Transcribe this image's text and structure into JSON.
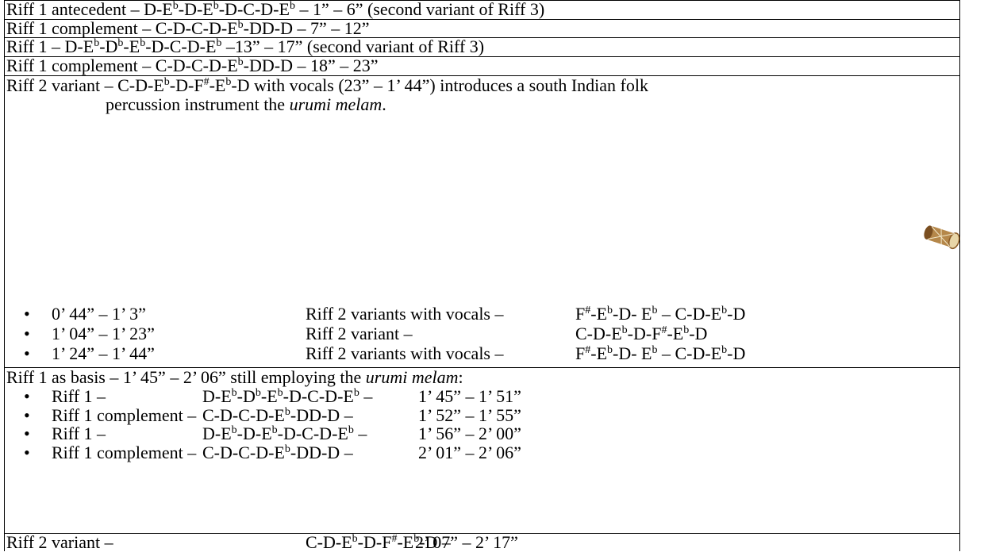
{
  "rows": [
    {
      "runs": [
        {
          "t": "Riff 1 antecedent – D-E"
        },
        {
          "sup": "b"
        },
        {
          "t": "-D-E"
        },
        {
          "sup": "b"
        },
        {
          "t": "-D-C-D-E"
        },
        {
          "sup": "b"
        },
        {
          "t": " – 1” – 6” (second variant of Riff 3)"
        }
      ]
    },
    {
      "runs": [
        {
          "t": "Riff 1 complement – C-D-C-D-E"
        },
        {
          "sup": "b"
        },
        {
          "t": "-DD-D – 7” – 12”"
        }
      ]
    },
    {
      "runs": [
        {
          "t": "Riff 1 – D-E"
        },
        {
          "sup": "b"
        },
        {
          "t": "-D"
        },
        {
          "sup": "b"
        },
        {
          "t": "-E"
        },
        {
          "sup": "b"
        },
        {
          "t": "-D-C-D-E"
        },
        {
          "sup": "b"
        },
        {
          "t": " –13” – 17” (second variant of Riff 3)"
        }
      ]
    },
    {
      "runs": [
        {
          "t": "Riff 1 complement – C-D-C-D-E"
        },
        {
          "sup": "b"
        },
        {
          "t": "-DD-D – 18” – 23”"
        }
      ]
    }
  ],
  "section_riff2": {
    "line1": [
      {
        "t": "Riff 2 variant – C-D-E"
      },
      {
        "sup": "b"
      },
      {
        "t": "-D-F"
      },
      {
        "sup": "#"
      },
      {
        "t": "-E"
      },
      {
        "sup": "b"
      },
      {
        "t": "-D with vocals (23” – 1’ 44”) introduces a south Indian folk"
      }
    ],
    "line2": [
      {
        "t": "percussion instrument the "
      },
      {
        "i": "urumi melam"
      },
      {
        "t": "."
      }
    ],
    "bullets": [
      {
        "time": "0’ 44” – 1’ 3”",
        "label": "Riff 2 variants with vocals – ",
        "notes": [
          {
            "t": "F"
          },
          {
            "sup": "#"
          },
          {
            "t": "-E"
          },
          {
            "sup": "b"
          },
          {
            "t": "-D- E"
          },
          {
            "sup": "b"
          },
          {
            "t": " – C-D-E"
          },
          {
            "sup": "b"
          },
          {
            "t": "-D"
          }
        ]
      },
      {
        "time": "1’ 04” – 1’ 23”",
        "label": "Riff 2 variant – ",
        "notes": [
          {
            "t": "C-D-E"
          },
          {
            "sup": "b"
          },
          {
            "t": "-D-F"
          },
          {
            "sup": "#"
          },
          {
            "t": "-E"
          },
          {
            "sup": "b"
          },
          {
            "t": "-D"
          }
        ]
      },
      {
        "time": "1’ 24” – 1’ 44”",
        "label": "Riff 2 variants with vocals – ",
        "notes": [
          {
            "t": "F"
          },
          {
            "sup": "#"
          },
          {
            "t": "-E"
          },
          {
            "sup": "b"
          },
          {
            "t": "-D- E"
          },
          {
            "sup": "b"
          },
          {
            "t": " – C-D-E"
          },
          {
            "sup": "b"
          },
          {
            "t": "-D"
          }
        ]
      }
    ]
  },
  "section_riff1": {
    "heading": [
      {
        "t": "Riff 1 as basis – 1’ 45” – 2’ 06” still employing the "
      },
      {
        "i": "urumi melam"
      },
      {
        "t": ":"
      }
    ],
    "bullets": [
      {
        "label": "Riff 1 – ",
        "notes": [
          {
            "t": "D-E"
          },
          {
            "sup": "b"
          },
          {
            "t": "-D"
          },
          {
            "sup": "b"
          },
          {
            "t": "-E"
          },
          {
            "sup": "b"
          },
          {
            "t": "-D-C-D-E"
          },
          {
            "sup": "b"
          },
          {
            "t": " –"
          }
        ],
        "time": "1’ 45” – 1’ 51”"
      },
      {
        "label": "Riff 1 complement – ",
        "notes": [
          {
            "t": "C-D-C-D-E"
          },
          {
            "sup": "b"
          },
          {
            "t": "-DD-D –"
          }
        ],
        "time": "1’ 52” – 1’ 55”"
      },
      {
        "label": "Riff 1 – ",
        "notes": [
          {
            "t": "D-E"
          },
          {
            "sup": "b"
          },
          {
            "t": "-D-E"
          },
          {
            "sup": "b"
          },
          {
            "t": "-D-C-D-E"
          },
          {
            "sup": "b"
          },
          {
            "t": " –"
          }
        ],
        "time": "1’ 56” – 2’ 00”"
      },
      {
        "label": "Riff 1 complement – ",
        "notes": [
          {
            "t": "C-D-C-D-E"
          },
          {
            "sup": "b"
          },
          {
            "t": "-DD-D –"
          }
        ],
        "time": "2’ 01” – 2’ 06”"
      }
    ]
  },
  "last_row": {
    "label": "Riff 2 variant –",
    "notes": [
      {
        "t": "C-D-E"
      },
      {
        "sup": "b"
      },
      {
        "t": "-D-F"
      },
      {
        "sup": "#"
      },
      {
        "t": "-E"
      },
      {
        "sup": "b"
      },
      {
        "t": "-D –"
      }
    ],
    "time": "2’ 07” – 2’ 17”"
  }
}
